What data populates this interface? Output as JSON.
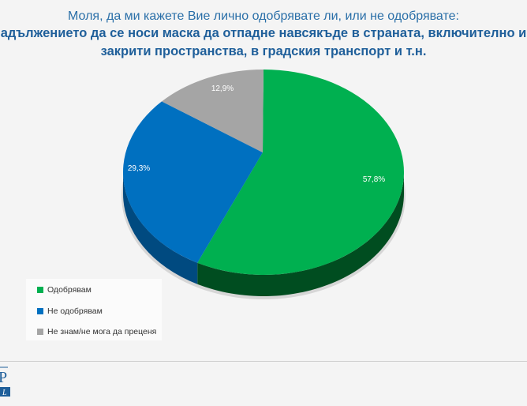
{
  "header": {
    "question": "Моля, да ми кажете Вие лично одобрявате ли, или не одобрявате:",
    "title_line1": "адължението да се носи маска да отпадне навсякъде в страната, включително и",
    "title_line2": "закрити пространства, в градския транспорт и т.н."
  },
  "chart_data": {
    "type": "pie",
    "title": "Моля, да ми кажете Вие лично одобрявате ли, или не одобрявате: задължението да се носи маска да отпадне навсякъде в страната, включително и закрити пространства, в градския транспорт и т.н.",
    "categories": [
      "Одобрявам",
      "Не одобрявам",
      "Не знам/не мога да преценя"
    ],
    "values": [
      57.8,
      29.3,
      12.9
    ],
    "labels": [
      "57,8%",
      "29,3%",
      "12,9%"
    ],
    "colors": [
      "#00b050",
      "#0070c0",
      "#a5a5a5"
    ],
    "side_colors": [
      "#004d20",
      "#004a80",
      "#707070"
    ],
    "legend_position": "bottom-left"
  },
  "logo": {
    "text": "P L"
  }
}
